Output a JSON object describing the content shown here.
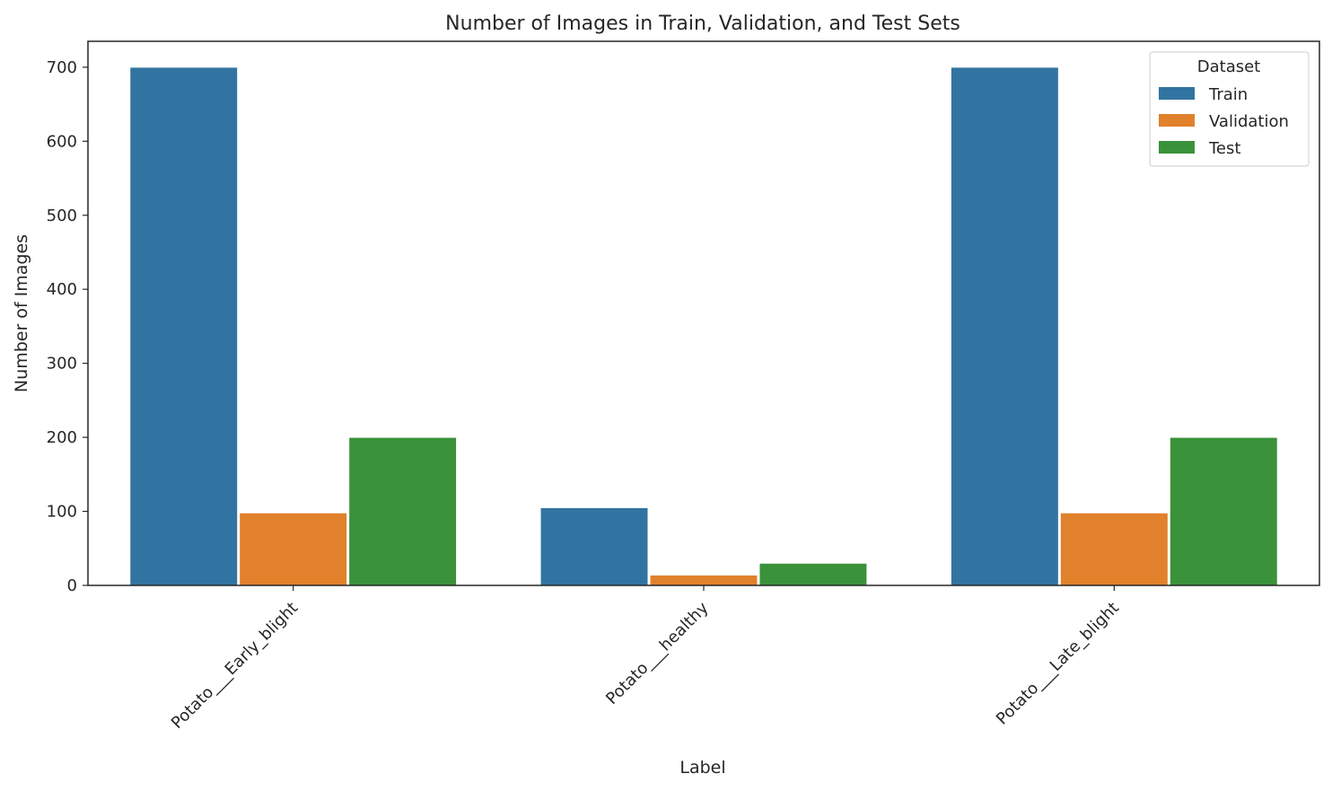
{
  "chart_data": {
    "type": "bar",
    "title": "Number of Images in Train, Validation, and Test Sets",
    "xlabel": "Label",
    "ylabel": "Number of Images",
    "categories": [
      "Potato___Early_blight",
      "Potato___healthy",
      "Potato___Late_blight"
    ],
    "series": [
      {
        "name": "Train",
        "values": [
          700,
          105,
          700
        ],
        "color": "#3274a1"
      },
      {
        "name": "Validation",
        "values": [
          98,
          14,
          98
        ],
        "color": "#e1812c"
      },
      {
        "name": "Test",
        "values": [
          200,
          30,
          200
        ],
        "color": "#3a923a"
      }
    ],
    "ylim": [
      0,
      735
    ],
    "yticks": [
      0,
      100,
      200,
      300,
      400,
      500,
      600,
      700
    ],
    "grid": false,
    "legend": {
      "title": "Dataset",
      "placement": "top-right"
    },
    "x_tick_rotation": -45
  }
}
